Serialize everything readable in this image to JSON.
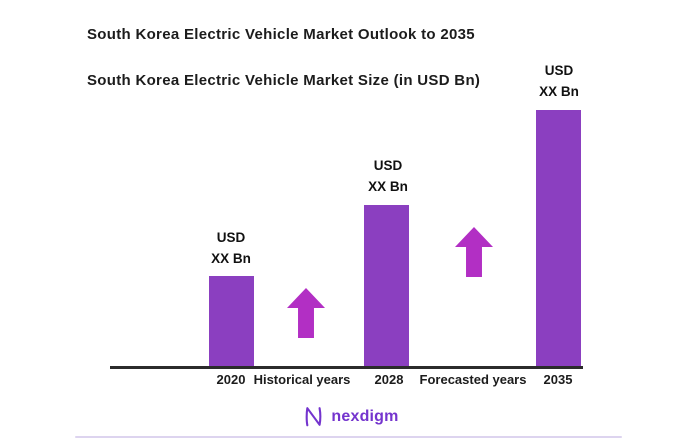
{
  "header": {
    "title": "South Korea Electric Vehicle Market Outlook to 2035",
    "subtitle": "South Korea Electric Vehicle Market Size (in USD Bn)"
  },
  "chart_data": {
    "type": "bar",
    "title": "South Korea Electric Vehicle Market Outlook to 2035",
    "subtitle": "South Korea Electric Vehicle Market Size (in USD Bn)",
    "categories": [
      "2020",
      "2028",
      "2035"
    ],
    "series": [
      {
        "name": "South Korea Electric Vehicle Market Size",
        "unit": "USD Bn",
        "values": [
          "XX",
          "XX",
          "XX"
        ],
        "relative_bar_heights": [
          0.35,
          0.63,
          1.0
        ]
      }
    ],
    "bar_value_labels": [
      {
        "line1": "USD",
        "line2": "XX Bn"
      },
      {
        "line1": "USD",
        "line2": "XX Bn"
      },
      {
        "line1": "USD",
        "line2": "XX Bn"
      }
    ],
    "period_annotations": [
      {
        "label": "Historical years",
        "between": [
          "2020",
          "2028"
        ]
      },
      {
        "label": "Forecasted years",
        "between": [
          "2028",
          "2035"
        ]
      }
    ],
    "colors": {
      "bar": "#8b3fc0",
      "arrow": "#b22fc4",
      "axis": "#2b2b2b",
      "text": "#1c1c1c"
    },
    "legend_position": "none",
    "grid": false,
    "xlabel": "",
    "ylabel": ""
  },
  "xaxis": {
    "labels": [
      "2020",
      "Historical years",
      "2028",
      "Forecasted years",
      "2035"
    ]
  },
  "footer": {
    "brand": "nexdigm",
    "brand_color": "#7434ce"
  }
}
